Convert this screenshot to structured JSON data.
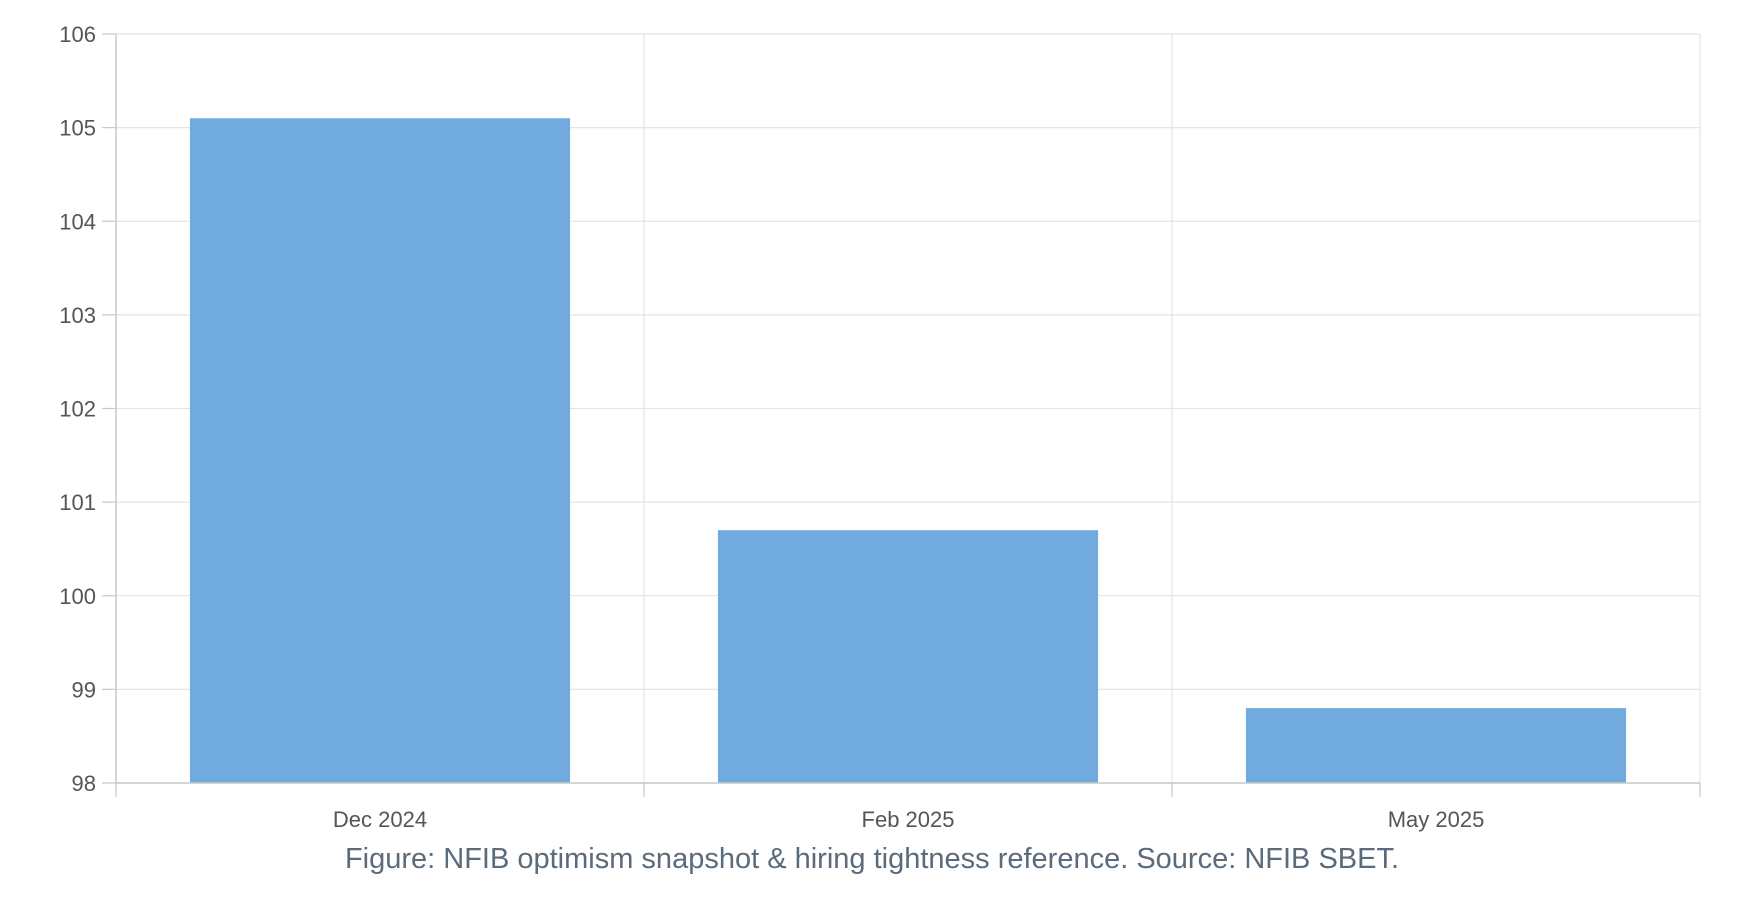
{
  "chart_data": {
    "type": "bar",
    "categories": [
      "Dec 2024",
      "Feb 2025",
      "May 2025"
    ],
    "values": [
      105.1,
      100.7,
      98.8
    ],
    "title": "",
    "xlabel": "",
    "ylabel": "",
    "ylim": [
      98,
      106
    ],
    "yticks": [
      98,
      99,
      100,
      101,
      102,
      103,
      104,
      105,
      106
    ],
    "grid": true,
    "legend": "none",
    "colors": {
      "bar": "#70aade",
      "grid": "#e4e4e4",
      "axis": "#c8c8c8"
    }
  },
  "caption": "Figure: NFIB optimism snapshot & hiring tightness reference. Source: NFIB SBET."
}
